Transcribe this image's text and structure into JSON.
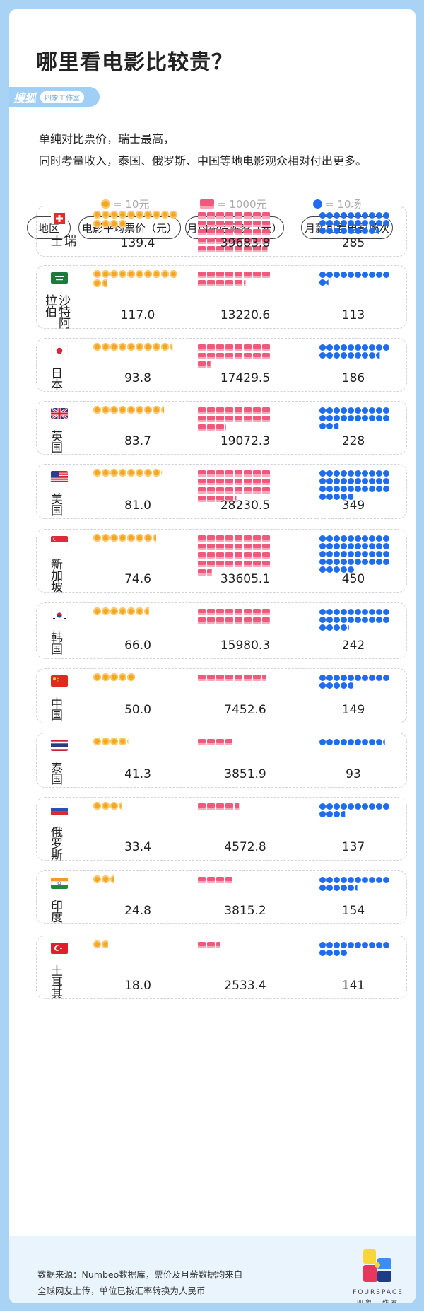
{
  "title": "哪里看电影比较贵？",
  "brand": {
    "name": "搜狐",
    "tag": "四象工作室"
  },
  "intro": {
    "line1": "单纯对比票价，瑞士最高，",
    "line2": "同时考量收入，泰国、俄罗斯、中国等地电影观众相对付出更多。"
  },
  "legend": {
    "coin": "= 10元",
    "card": "= 1000元",
    "dot": "= 10场"
  },
  "headers": {
    "region": "地区",
    "price": "电影平均票价（元）",
    "salary": "月均税后薪资（元）",
    "count": "月薪可看电影场次"
  },
  "colors": {
    "coin": "#f5a623",
    "card": "#ef5a7c",
    "dot": "#1e6cf0"
  },
  "chart_data": {
    "type": "table",
    "series": [
      {
        "name": "电影平均票价（元）",
        "unit_per_icon": 10
      },
      {
        "name": "月均税后薪资（元）",
        "unit_per_icon": 1000
      },
      {
        "name": "月薪可看电影场次",
        "unit_per_icon": 10
      }
    ],
    "rows": [
      {
        "country": "瑞士",
        "flag": "ch",
        "price": 139.4,
        "price_label": "139.4",
        "salary": 39683.8,
        "salary_label": "39683.8",
        "count": 285,
        "count_label": "285"
      },
      {
        "country": "沙特阿拉伯",
        "flag": "sa",
        "price": 117.0,
        "price_label": "117.0",
        "salary": 13220.6,
        "salary_label": "13220.6",
        "count": 113,
        "count_label": "113"
      },
      {
        "country": "日本",
        "flag": "jp",
        "price": 93.8,
        "price_label": "93.8",
        "salary": 17429.5,
        "salary_label": "17429.5",
        "count": 186,
        "count_label": "186"
      },
      {
        "country": "英国",
        "flag": "gb",
        "price": 83.7,
        "price_label": "83.7",
        "salary": 19072.3,
        "salary_label": "19072.3",
        "count": 228,
        "count_label": "228"
      },
      {
        "country": "美国",
        "flag": "us",
        "price": 81.0,
        "price_label": "81.0",
        "salary": 28230.5,
        "salary_label": "28230.5",
        "count": 349,
        "count_label": "349"
      },
      {
        "country": "新加坡",
        "flag": "sg",
        "price": 74.6,
        "price_label": "74.6",
        "salary": 33605.1,
        "salary_label": "33605.1",
        "count": 450,
        "count_label": "450"
      },
      {
        "country": "韩国",
        "flag": "kr",
        "price": 66.0,
        "price_label": "66.0",
        "salary": 15980.3,
        "salary_label": "15980.3",
        "count": 242,
        "count_label": "242"
      },
      {
        "country": "中国",
        "flag": "cn",
        "price": 50.0,
        "price_label": "50.0",
        "salary": 7452.6,
        "salary_label": "7452.6",
        "count": 149,
        "count_label": "149"
      },
      {
        "country": "泰国",
        "flag": "th",
        "price": 41.3,
        "price_label": "41.3",
        "salary": 3851.9,
        "salary_label": "3851.9",
        "count": 93,
        "count_label": "93"
      },
      {
        "country": "俄罗斯",
        "flag": "ru",
        "price": 33.4,
        "price_label": "33.4",
        "salary": 4572.8,
        "salary_label": "4572.8",
        "count": 137,
        "count_label": "137"
      },
      {
        "country": "印度",
        "flag": "in",
        "price": 24.8,
        "price_label": "24.8",
        "salary": 3815.2,
        "salary_label": "3815.2",
        "count": 154,
        "count_label": "154"
      },
      {
        "country": "土耳其",
        "flag": "tr",
        "price": 18.0,
        "price_label": "18.0",
        "salary": 2533.4,
        "salary_label": "2533.4",
        "count": 141,
        "count_label": "141"
      }
    ]
  },
  "footer": {
    "line1": "数据来源：Numbeo数据库，票价及月薪数据均来自",
    "line2": "全球网友上传，单位已按汇率转换为人民币",
    "logo_text": "FOURSPACE",
    "logo_sub": "四象工作室"
  }
}
